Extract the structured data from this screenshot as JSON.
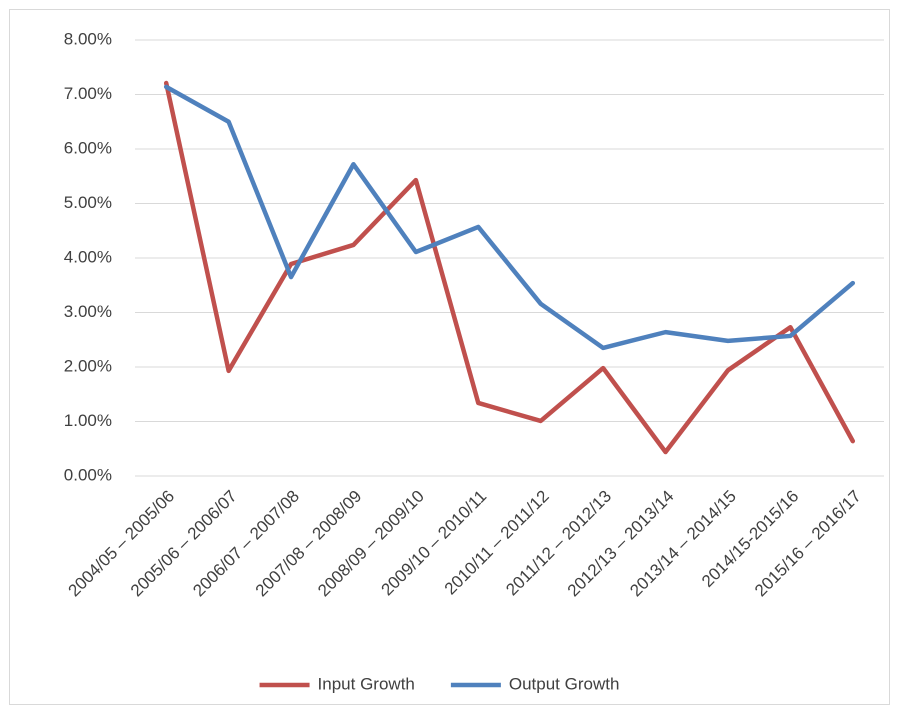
{
  "chart_data": {
    "type": "line",
    "categories": [
      "2004/05 – 2005/06",
      "2005/06 – 2006/07",
      "2006/07 – 2007/08",
      "2007/08 – 2008/09",
      "2008/09 – 2009/10",
      "2009/10 – 2010/11",
      "2010/11 – 2011/12",
      "2011/12 – 2012/13",
      "2012/13 – 2013/14",
      "2013/14 – 2014/15",
      "2014/15-2015/16",
      "2015/16 – 2016/17"
    ],
    "series": [
      {
        "name": "Input Growth",
        "color": "#c0504d",
        "values": [
          7.21,
          1.93,
          3.89,
          4.24,
          5.43,
          1.34,
          1.01,
          1.98,
          0.44,
          1.94,
          2.73,
          0.64
        ]
      },
      {
        "name": "Output Growth",
        "color": "#4f81bd",
        "values": [
          7.14,
          6.5,
          3.65,
          5.72,
          4.11,
          4.57,
          3.16,
          2.35,
          2.64,
          2.48,
          2.57,
          3.54
        ]
      }
    ],
    "ylim": [
      0,
      8
    ],
    "yticks": [
      {
        "value": 0,
        "label": "0.00%"
      },
      {
        "value": 1,
        "label": "1.00%"
      },
      {
        "value": 2,
        "label": "2.00%"
      },
      {
        "value": 3,
        "label": "3.00%"
      },
      {
        "value": 4,
        "label": "4.00%"
      },
      {
        "value": 5,
        "label": "5.00%"
      },
      {
        "value": 6,
        "label": "6.00%"
      },
      {
        "value": 7,
        "label": "7.00%"
      },
      {
        "value": 8,
        "label": "8.00%"
      }
    ],
    "grid": true,
    "legend": "bottom"
  }
}
